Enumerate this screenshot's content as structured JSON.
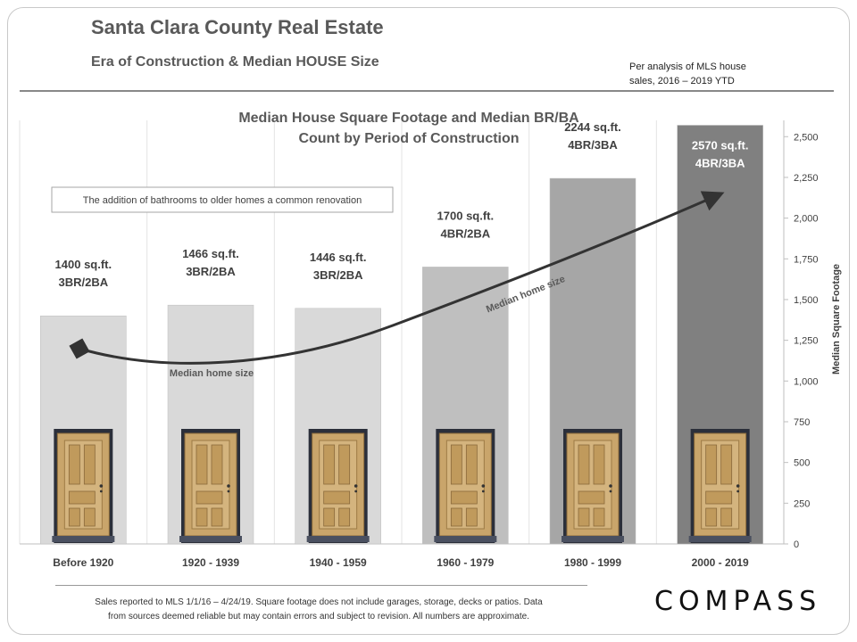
{
  "header": {
    "title": "Santa Clara County Real Estate",
    "subtitle": "Era of Construction  & Median HOUSE Size",
    "note_line1": "Per analysis  of MLS house",
    "note_line2": "sales,  2016 – 2019 YTD"
  },
  "chart_data": {
    "type": "bar",
    "title_line1": "Median House Square Footage and Median BR/BA",
    "title_line2": "Count by Period of Construction",
    "categories": [
      "Before 1920",
      "1920 - 1939",
      "1940 - 1959",
      "1960 - 1979",
      "1980 - 1999",
      "2000 - 2019"
    ],
    "values": [
      1400,
      1466,
      1446,
      1700,
      2244,
      2570
    ],
    "data_labels_line1": [
      "1400 sq.ft.",
      "1466 sq.ft.",
      "1446 sq.ft.",
      "1700 sq.ft.",
      "2244 sq.ft.",
      "2570 sq.ft."
    ],
    "data_labels_line2": [
      "3BR/2BA",
      "3BR/2BA",
      "3BR/2BA",
      "4BR/2BA",
      "4BR/3BA",
      "4BR/3BA"
    ],
    "bar_colors": [
      "#d9d9d9",
      "#d9d9d9",
      "#d9d9d9",
      "#bfbfbf",
      "#a6a6a6",
      "#808080"
    ],
    "ylabel": "Median Square Footage",
    "ylim": [
      0,
      2600
    ],
    "yticks": [
      0,
      250,
      500,
      750,
      1000,
      1250,
      1500,
      1750,
      2000,
      2250,
      2500
    ],
    "ytick_labels": [
      "0",
      "250",
      "500",
      "750",
      "1,000",
      "1,250",
      "1,500",
      "1,750",
      "2,000",
      "2,250",
      "2,500"
    ],
    "y_axis_side": "right",
    "annotation_box": "The addition of bathrooms to older homes a common renovation",
    "trend_label_1": "Median home size",
    "trend_label_2": "Median home size",
    "icon": "door-icon"
  },
  "footer": {
    "line1": "Sales reported  to MLS 1/1/16 – 4/24/19. Square footage does not include garages, storage, decks or patios. Data",
    "line2": "from sources deemed reliable but may contain errors and subject to revision. All numbers  are approximate.",
    "brand": "COMPASS"
  }
}
